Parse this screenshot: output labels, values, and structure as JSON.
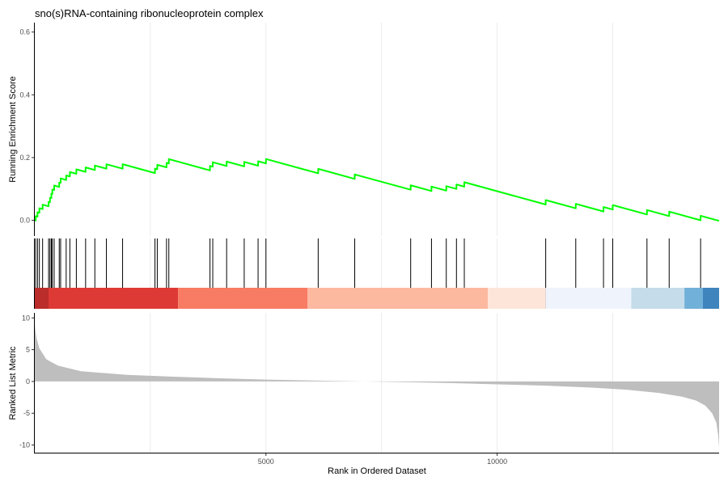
{
  "chart_data": {
    "type": "line",
    "title": "sno(s)RNA-containing ribonucleoprotein complex",
    "xlabel": "Rank in Ordered Dataset",
    "xlim": [
      1,
      14800
    ],
    "x_ticks": [
      5000,
      10000
    ],
    "x_tick_labels": [
      "5000",
      "10000"
    ],
    "grid": true,
    "es_panel": {
      "ylabel": "Running Enrichment Score",
      "ylim": [
        -0.05,
        0.63
      ],
      "y_ticks": [
        0.0,
        0.2,
        0.4,
        0.6
      ],
      "y_tick_labels": [
        "0.0",
        "0.2",
        "0.4",
        "0.6"
      ],
      "color": "#00ff00",
      "gene_positions": [
        20,
        60,
        100,
        170,
        300,
        330,
        360,
        380,
        420,
        530,
        560,
        680,
        760,
        900,
        1100,
        1300,
        1550,
        1900,
        2600,
        2650,
        2850,
        2900,
        3790,
        3850,
        4150,
        4530,
        4830,
        5000,
        6130,
        6920,
        8130,
        8580,
        8900,
        9120,
        9290,
        11050,
        11700,
        12300,
        12500,
        13240,
        13720,
        14400
      ],
      "es_step_up": 0.0142,
      "es_start": 0.0,
      "es_end": 0.0
    },
    "color_bar": {
      "boundaries": [
        0,
        3100,
        5900,
        9800,
        11050,
        12900,
        14050,
        14450,
        14800
      ],
      "colors": [
        "#de3a35",
        "#f87b63",
        "#fdb8a0",
        "#fee5d9",
        "#eff3fb",
        "#c5dcea",
        "#71b0d8",
        "#3f84bd"
      ]
    },
    "metric_panel": {
      "ylabel": "Ranked List Metric",
      "ylim": [
        -11.2,
        10.8
      ],
      "y_ticks": [
        -10,
        -5,
        0,
        5,
        10
      ],
      "y_tick_labels": [
        "-10",
        "-5",
        "0",
        "5",
        "10"
      ],
      "fill": "#bebebe",
      "curve": [
        [
          0,
          9.2
        ],
        [
          15,
          8.0
        ],
        [
          40,
          6.8
        ],
        [
          100,
          5.2
        ],
        [
          250,
          3.5
        ],
        [
          500,
          2.5
        ],
        [
          1000,
          1.6
        ],
        [
          2000,
          1.05
        ],
        [
          3000,
          0.75
        ],
        [
          4000,
          0.5
        ],
        [
          5000,
          0.3
        ],
        [
          6000,
          0.15
        ],
        [
          7000,
          0.03
        ],
        [
          8000,
          -0.1
        ],
        [
          9000,
          -0.25
        ],
        [
          10000,
          -0.45
        ],
        [
          11000,
          -0.65
        ],
        [
          12000,
          -0.95
        ],
        [
          12800,
          -1.3
        ],
        [
          13500,
          -1.8
        ],
        [
          14000,
          -2.4
        ],
        [
          14300,
          -3.0
        ],
        [
          14500,
          -3.8
        ],
        [
          14650,
          -5.0
        ],
        [
          14740,
          -6.5
        ],
        [
          14780,
          -8.5
        ],
        [
          14800,
          -10.5
        ]
      ]
    }
  }
}
